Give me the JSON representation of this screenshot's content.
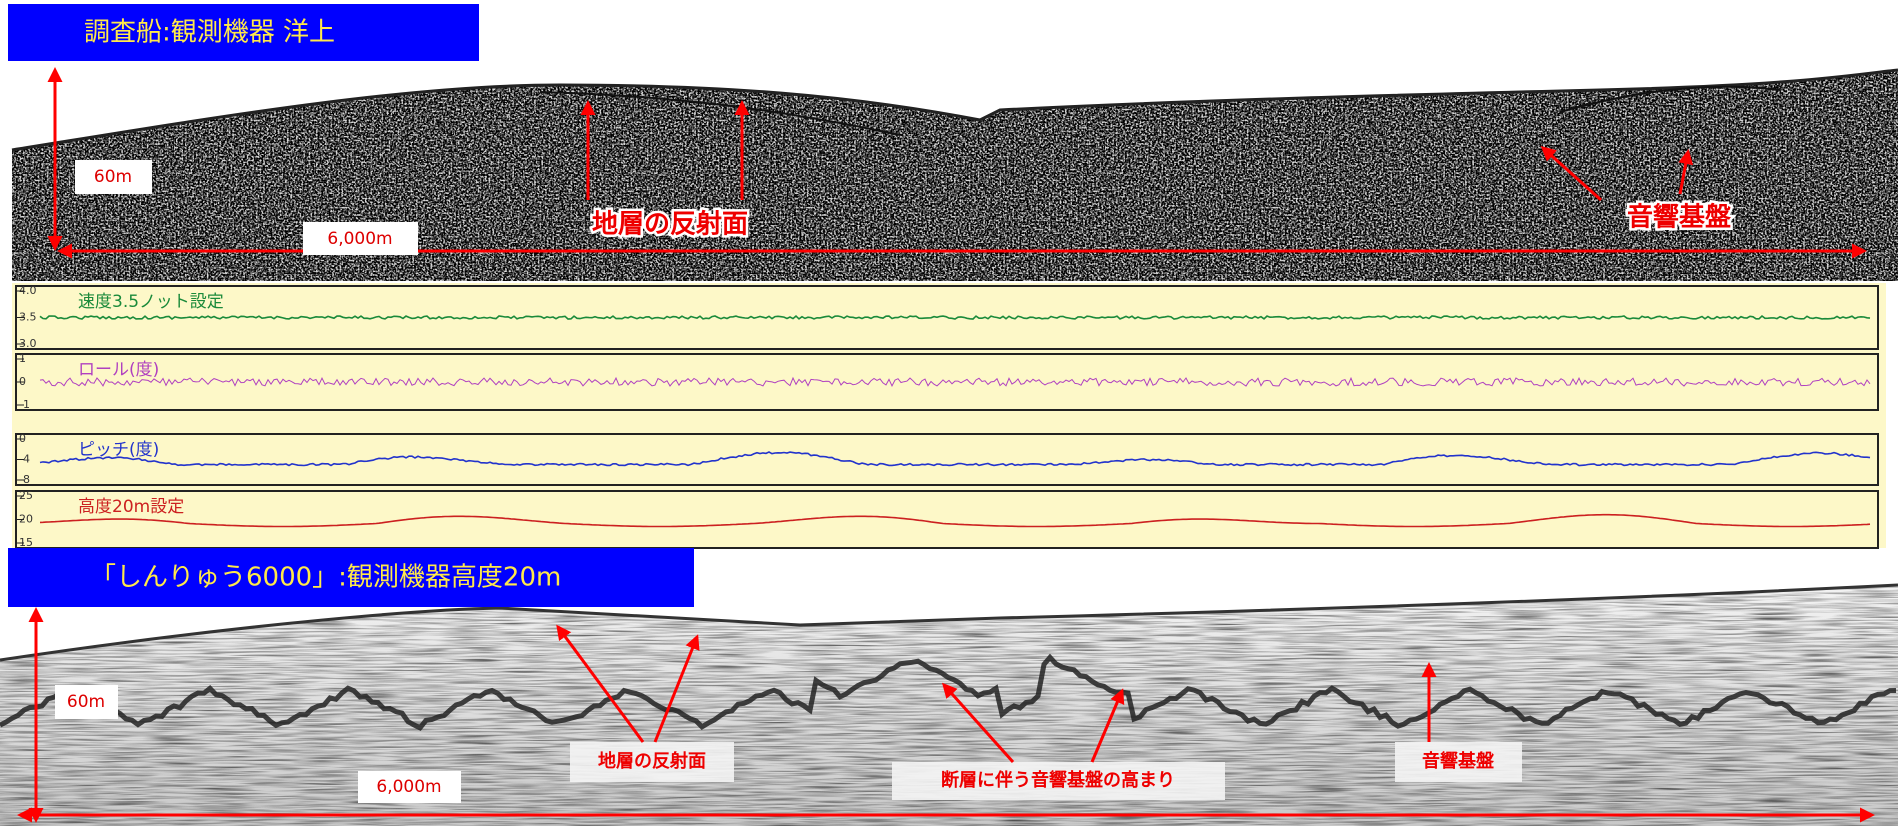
{
  "top_panel": {
    "title": "調査船:観測機器 洋上",
    "depth_label": "60m",
    "distance_label": "6,000m",
    "annotations": [
      "地層の反射面",
      "音響基盤"
    ]
  },
  "monitor_charts": [
    {
      "label": "速度3.5ノット設定",
      "ticks": [
        "4.0",
        "3.5",
        "3.0"
      ]
    },
    {
      "label": "ロール(度)",
      "ticks": [
        "1",
        "0",
        "-1"
      ]
    },
    {
      "label": "ピッチ(度)",
      "ticks": [
        "0",
        "-4",
        "-8"
      ]
    },
    {
      "label": "高度20m設定",
      "ticks": [
        "25",
        "20",
        "15"
      ]
    }
  ],
  "bottom_panel": {
    "title": "「しんりゅう6000」:観測機器高度20m",
    "depth_label": "60m",
    "distance_label": "6,000m",
    "annotations": [
      "地層の反射面",
      "断層に伴う音響基盤の高まり",
      "音響基盤"
    ]
  }
}
